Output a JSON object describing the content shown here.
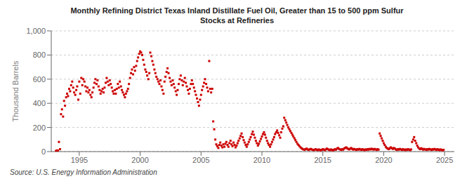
{
  "chart_data": {
    "type": "scatter",
    "title": "Monthly Refining District Texas Inland Distillate Fuel Oil, Greater than 15 to 500 ppm Sulfur\nStocks at Refineries",
    "ylabel": "Thousand Barrels",
    "annotations": [
      "Source: U.S. Energy Information Administration"
    ],
    "color": "#cc0000",
    "marker": "square",
    "grid": "y",
    "xlim": [
      1992.7,
      2025.8
    ],
    "ylim": [
      0,
      1000
    ],
    "xticks": [
      1995,
      2000,
      2005,
      2010,
      2015,
      2020,
      2025
    ],
    "yticks": [
      0,
      200,
      400,
      600,
      800,
      {
        "value": 1000,
        "label": "1,000"
      }
    ],
    "x": [
      1993.08,
      1993.17,
      1993.25,
      1993.33,
      1993.42,
      1993.5,
      1993.58,
      1993.67,
      1993.75,
      1993.83,
      1993.92,
      1994.0,
      1994.08,
      1994.17,
      1994.25,
      1994.33,
      1994.42,
      1994.5,
      1994.58,
      1994.67,
      1994.75,
      1994.83,
      1994.92,
      1995.0,
      1995.08,
      1995.17,
      1995.25,
      1995.33,
      1995.42,
      1995.5,
      1995.58,
      1995.67,
      1995.75,
      1995.83,
      1995.92,
      1996.0,
      1996.08,
      1996.17,
      1996.25,
      1996.33,
      1996.42,
      1996.5,
      1996.58,
      1996.67,
      1996.75,
      1996.83,
      1996.92,
      1997.0,
      1997.08,
      1997.17,
      1997.25,
      1997.33,
      1997.42,
      1997.5,
      1997.58,
      1997.67,
      1997.75,
      1997.83,
      1997.92,
      1998.0,
      1998.08,
      1998.17,
      1998.25,
      1998.33,
      1998.42,
      1998.5,
      1998.58,
      1998.67,
      1998.75,
      1998.83,
      1998.92,
      1999.0,
      1999.08,
      1999.17,
      1999.25,
      1999.33,
      1999.42,
      1999.5,
      1999.58,
      1999.67,
      1999.75,
      1999.83,
      1999.92,
      2000.0,
      2000.08,
      2000.17,
      2000.25,
      2000.33,
      2000.42,
      2000.5,
      2000.58,
      2000.67,
      2000.75,
      2000.83,
      2000.92,
      2001.0,
      2001.08,
      2001.17,
      2001.25,
      2001.33,
      2001.42,
      2001.5,
      2001.58,
      2001.67,
      2001.75,
      2001.83,
      2001.92,
      2002.0,
      2002.08,
      2002.17,
      2002.25,
      2002.33,
      2002.42,
      2002.5,
      2002.58,
      2002.67,
      2002.75,
      2002.83,
      2002.92,
      2003.0,
      2003.08,
      2003.17,
      2003.25,
      2003.33,
      2003.42,
      2003.5,
      2003.58,
      2003.67,
      2003.75,
      2003.83,
      2003.92,
      2004.0,
      2004.08,
      2004.17,
      2004.25,
      2004.33,
      2004.42,
      2004.5,
      2004.58,
      2004.67,
      2004.75,
      2004.83,
      2004.92,
      2005.0,
      2005.08,
      2005.17,
      2005.25,
      2005.33,
      2005.42,
      2005.5,
      2005.58,
      2005.67,
      2005.75,
      2005.83,
      2005.92,
      2006.0,
      2006.08,
      2006.17,
      2006.25,
      2006.33,
      2006.42,
      2006.5,
      2006.58,
      2006.67,
      2006.75,
      2006.83,
      2006.92,
      2007.0,
      2007.08,
      2007.17,
      2007.25,
      2007.33,
      2007.42,
      2007.5,
      2007.58,
      2007.67,
      2007.75,
      2007.83,
      2007.92,
      2008.0,
      2008.08,
      2008.17,
      2008.25,
      2008.33,
      2008.42,
      2008.5,
      2008.58,
      2008.67,
      2008.75,
      2008.83,
      2008.92,
      2009.0,
      2009.08,
      2009.17,
      2009.25,
      2009.33,
      2009.42,
      2009.5,
      2009.58,
      2009.67,
      2009.75,
      2009.83,
      2009.92,
      2010.0,
      2010.08,
      2010.17,
      2010.25,
      2010.33,
      2010.42,
      2010.5,
      2010.58,
      2010.67,
      2010.75,
      2010.83,
      2010.92,
      2011.0,
      2011.08,
      2011.17,
      2011.25,
      2011.33,
      2011.42,
      2011.5,
      2011.58,
      2011.67,
      2011.75,
      2011.83,
      2011.92,
      2012.0,
      2012.08,
      2012.17,
      2012.25,
      2012.33,
      2012.42,
      2012.5,
      2012.58,
      2012.67,
      2012.75,
      2012.83,
      2012.92,
      2013.0,
      2013.08,
      2013.17,
      2013.25,
      2013.33,
      2013.42,
      2013.5,
      2013.58,
      2013.67,
      2013.75,
      2013.83,
      2013.92,
      2014.0,
      2014.08,
      2014.17,
      2014.25,
      2014.33,
      2014.42,
      2014.5,
      2014.58,
      2014.67,
      2014.75,
      2014.83,
      2014.92,
      2015.0,
      2015.08,
      2015.17,
      2015.25,
      2015.33,
      2015.42,
      2015.5,
      2015.58,
      2015.67,
      2015.75,
      2015.83,
      2015.92,
      2016.0,
      2016.08,
      2016.17,
      2016.25,
      2016.33,
      2016.42,
      2016.5,
      2016.58,
      2016.67,
      2016.75,
      2016.83,
      2016.92,
      2017.0,
      2017.08,
      2017.17,
      2017.25,
      2017.33,
      2017.42,
      2017.5,
      2017.58,
      2017.67,
      2017.75,
      2017.83,
      2017.92,
      2018.0,
      2018.08,
      2018.17,
      2018.25,
      2018.33,
      2018.42,
      2018.5,
      2018.58,
      2018.67,
      2018.75,
      2018.83,
      2018.92,
      2019.0,
      2019.08,
      2019.17,
      2019.25,
      2019.33,
      2019.42,
      2019.5,
      2019.58,
      2019.67,
      2019.75,
      2019.83,
      2019.92,
      2020.0,
      2020.08,
      2020.17,
      2020.25,
      2020.33,
      2020.42,
      2020.5,
      2020.58,
      2020.67,
      2020.75,
      2020.83,
      2020.92,
      2021.0,
      2021.08,
      2021.17,
      2021.25,
      2021.33,
      2021.42,
      2021.5,
      2021.58,
      2021.67,
      2021.75,
      2021.83,
      2021.92,
      2022.0,
      2022.08,
      2022.17,
      2022.25,
      2022.33,
      2022.42,
      2022.5,
      2022.58,
      2022.67,
      2022.75,
      2022.83,
      2022.92,
      2023.0,
      2023.08,
      2023.17,
      2023.25,
      2023.33,
      2023.42,
      2023.5,
      2023.58,
      2023.67,
      2023.75,
      2023.83,
      2023.92,
      2024.0,
      2024.08,
      2024.17,
      2024.25,
      2024.33,
      2024.42,
      2024.5,
      2024.58,
      2024.67,
      2024.75,
      2024.83,
      2024.92
    ],
    "values": [
      5,
      10,
      8,
      80,
      20,
      310,
      350,
      290,
      420,
      380,
      450,
      480,
      460,
      520,
      500,
      550,
      580,
      530,
      490,
      470,
      510,
      540,
      430,
      580,
      480,
      610,
      550,
      600,
      580,
      540,
      500,
      530,
      490,
      510,
      470,
      450,
      490,
      530,
      570,
      600,
      560,
      590,
      540,
      510,
      480,
      500,
      520,
      490,
      530,
      570,
      610,
      580,
      550,
      590,
      560,
      530,
      500,
      480,
      510,
      480,
      520,
      560,
      530,
      580,
      540,
      510,
      490,
      470,
      450,
      480,
      500,
      520,
      560,
      610,
      650,
      680,
      640,
      700,
      670,
      710,
      750,
      780,
      810,
      830,
      820,
      800,
      760,
      720,
      680,
      660,
      630,
      600,
      650,
      820,
      790,
      750,
      720,
      680,
      650,
      620,
      600,
      580,
      560,
      590,
      540,
      510,
      480,
      580,
      620,
      660,
      690,
      650,
      610,
      580,
      550,
      590,
      560,
      530,
      500,
      470,
      510,
      560,
      600,
      630,
      590,
      550,
      580,
      610,
      570,
      540,
      510,
      480,
      520,
      560,
      590,
      560,
      530,
      500,
      470,
      440,
      410,
      380,
      430,
      470,
      510,
      540,
      570,
      600,
      560,
      530,
      500,
      750,
      520,
      490,
      520,
      250,
      185,
      100,
      60,
      45,
      30,
      55,
      75,
      50,
      35,
      60,
      40,
      65,
      80,
      55,
      40,
      70,
      90,
      60,
      45,
      75,
      55,
      35,
      50,
      70,
      90,
      110,
      130,
      150,
      120,
      95,
      75,
      55,
      40,
      60,
      80,
      100,
      120,
      145,
      165,
      140,
      115,
      90,
      70,
      50,
      65,
      85,
      105,
      125,
      145,
      160,
      140,
      115,
      90,
      70,
      55,
      40,
      60,
      80,
      100,
      120,
      145,
      160,
      175,
      155,
      135,
      115,
      160,
      190,
      210,
      280,
      260,
      240,
      220,
      200,
      185,
      170,
      155,
      140,
      125,
      110,
      95,
      80,
      65,
      55,
      45,
      35,
      28,
      22,
      18,
      15,
      20,
      25,
      18,
      14,
      18,
      22,
      18,
      15,
      12,
      16,
      20,
      15,
      12,
      18,
      14,
      10,
      15,
      20,
      16,
      12,
      18,
      25,
      20,
      15,
      12,
      18,
      14,
      10,
      15,
      20,
      16,
      25,
      30,
      22,
      18,
      14,
      20,
      16,
      25,
      30,
      35,
      28,
      22,
      18,
      24,
      30,
      22,
      16,
      22,
      18,
      14,
      20,
      16,
      22,
      18,
      14,
      20,
      16,
      12,
      18,
      14,
      20,
      16,
      22,
      18,
      24,
      20,
      16,
      22,
      18,
      14,
      20,
      16,
      150,
      130,
      110,
      90,
      70,
      55,
      40,
      30,
      25,
      20,
      28,
      35,
      28,
      22,
      30,
      25,
      18,
      14,
      20,
      16,
      22,
      18,
      14,
      20,
      16,
      12,
      18,
      14,
      20,
      16,
      12,
      18,
      80,
      100,
      120,
      90,
      70,
      50,
      35,
      25,
      20,
      28,
      22,
      16,
      22,
      18,
      14,
      20,
      16,
      22,
      18,
      14,
      20,
      16,
      22,
      18,
      14,
      20,
      16,
      12,
      18,
      14,
      10,
      15
    ]
  }
}
